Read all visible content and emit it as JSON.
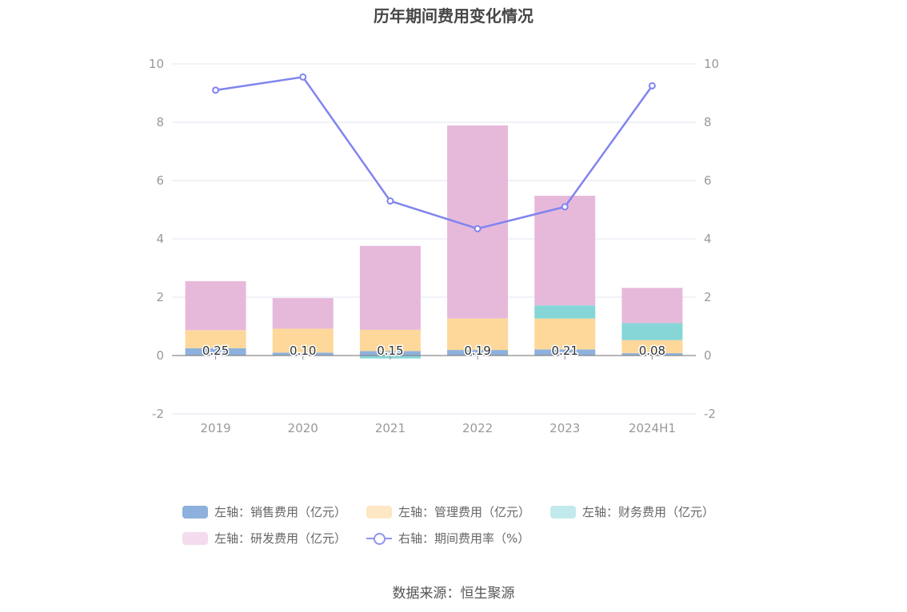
{
  "chart_data": {
    "type": "bar",
    "title": "历年期间费用变化情况",
    "categories": [
      "2019",
      "2020",
      "2021",
      "2022",
      "2023",
      "2024H1"
    ],
    "series": [
      {
        "name": "左轴：销售费用（亿元）",
        "kind": "bar",
        "color": "#8eb0dd",
        "values": [
          0.25,
          0.1,
          0.15,
          0.19,
          0.21,
          0.08
        ]
      },
      {
        "name": "左轴：管理费用（亿元）",
        "kind": "bar",
        "color": "#fdd89a",
        "values": [
          0.62,
          0.82,
          0.73,
          1.08,
          1.06,
          0.45
        ]
      },
      {
        "name": "左轴：财务费用（亿元）",
        "kind": "bar",
        "color": "#86d6d8",
        "values": [
          0.0,
          0.0,
          -0.1,
          0.0,
          0.45,
          0.58
        ]
      },
      {
        "name": "左轴：研发费用（亿元）",
        "kind": "bar",
        "color": "#e6b9db",
        "values": [
          1.68,
          1.05,
          2.88,
          6.62,
          3.76,
          1.21
        ]
      },
      {
        "name": "右轴：期间费用率（%）",
        "kind": "line",
        "color": "#8084ee",
        "values": [
          9.1,
          9.55,
          5.3,
          4.35,
          5.1,
          9.25
        ]
      }
    ],
    "data_labels": [
      "0.25",
      "0.10",
      "0.15",
      "0.19",
      "0.21",
      "0.08"
    ],
    "left_axis": {
      "ylim": [
        -2,
        10
      ],
      "ticks": [
        "10",
        "8",
        "6",
        "4",
        "2",
        "0",
        "-2"
      ]
    },
    "right_axis": {
      "ylim": [
        -2,
        10
      ],
      "ticks": [
        "10",
        "8",
        "6",
        "4",
        "2",
        "0",
        "-2"
      ]
    },
    "legend_position": "bottom",
    "grid": true
  },
  "legend": {
    "items": [
      {
        "label": "左轴：销售费用（亿元）",
        "color": "#8eb0dd",
        "type": "swatch"
      },
      {
        "label": "左轴：管理费用（亿元）",
        "color": "#fde7c4",
        "type": "swatch"
      },
      {
        "label": "左轴：财务费用（亿元）",
        "color": "#c2eaec",
        "type": "swatch"
      },
      {
        "label": "左轴：研发费用（亿元）",
        "color": "#f4dbed",
        "type": "swatch"
      },
      {
        "label": "右轴：期间费用率（%）",
        "color": "#8f93f2",
        "type": "line"
      }
    ]
  },
  "source": "数据来源：恒生聚源"
}
